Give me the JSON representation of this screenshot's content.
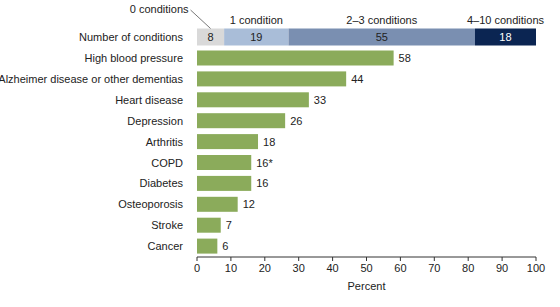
{
  "chart_data": [
    {
      "type": "bar",
      "orientation": "horizontal",
      "stacked": true,
      "data_labels": true,
      "categories": [
        "Number of conditions"
      ],
      "xlim": [
        0,
        100
      ],
      "series": [
        {
          "name": "0 conditions",
          "color": "#d9d9d9",
          "values": [
            8
          ]
        },
        {
          "name": "1 condition",
          "color": "#a9bdd8",
          "values": [
            19
          ]
        },
        {
          "name": "2–3 conditions",
          "color": "#7a8fb1",
          "values": [
            55
          ]
        },
        {
          "name": "4–10 conditions",
          "color": "#0b2552",
          "values": [
            18
          ]
        }
      ]
    },
    {
      "type": "bar",
      "orientation": "horizontal",
      "data_labels": true,
      "categories": [
        "High blood pressure",
        "Alzheimer disease or other dementias",
        "Heart disease",
        "Depression",
        "Arthritis",
        "COPD",
        "Diabetes",
        "Osteoporosis",
        "Stroke",
        "Cancer"
      ],
      "values": [
        58,
        44,
        33,
        26,
        18,
        16,
        16,
        12,
        7,
        6
      ],
      "value_labels": [
        "58",
        "44",
        "33",
        "26",
        "18",
        "16*",
        "16",
        "12",
        "7",
        "6"
      ],
      "color": "#8bab5b",
      "xlim": [
        0,
        100
      ],
      "xticks": [
        0,
        10,
        20,
        30,
        40,
        50,
        60,
        70,
        80,
        90,
        100
      ],
      "xlabel": "Percent"
    }
  ]
}
